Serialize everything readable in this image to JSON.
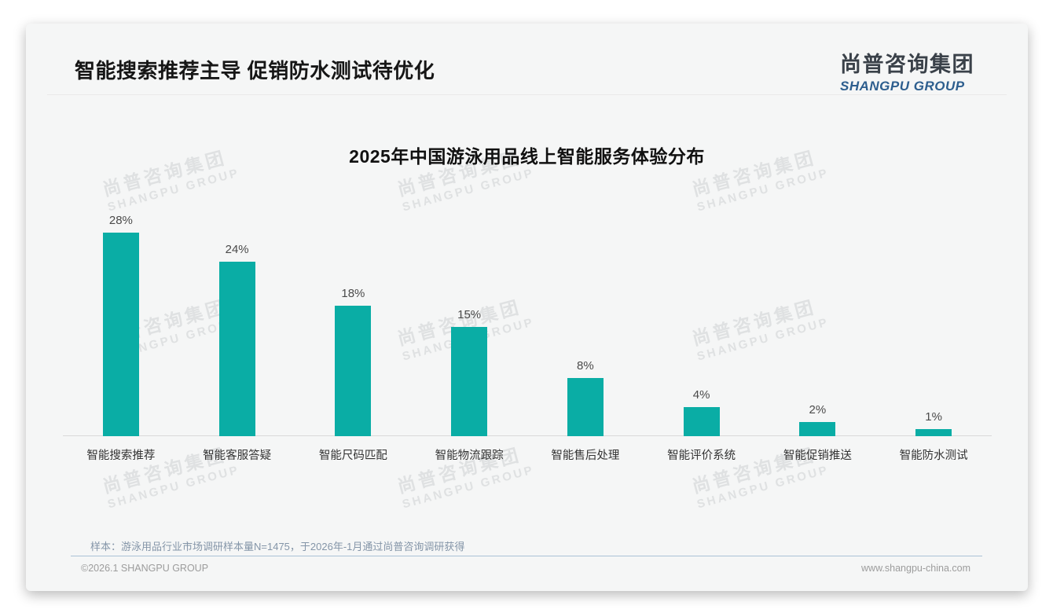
{
  "header": {
    "title": "智能搜索推荐主导 促销防水测试待优化",
    "logo_cn": "尚普咨询集团",
    "logo_en": "SHANGPU GROUP"
  },
  "watermark": {
    "cn": "尚普咨询集团",
    "en": "SHANGPU GROUP"
  },
  "chart_data": {
    "type": "bar",
    "title": "2025年中国游泳用品线上智能服务体验分布",
    "categories": [
      "智能搜索推荐",
      "智能客服答疑",
      "智能尺码匹配",
      "智能物流跟踪",
      "智能售后处理",
      "智能评价系统",
      "智能促销推送",
      "智能防水测试"
    ],
    "values": [
      28,
      24,
      18,
      15,
      8,
      4,
      2,
      1
    ],
    "value_labels": [
      "28%",
      "24%",
      "18%",
      "15%",
      "8%",
      "4%",
      "2%",
      "1%"
    ],
    "unit": "%",
    "bar_color": "#0aada5",
    "xlabel": "",
    "ylabel": "",
    "ylim": [
      0,
      30
    ],
    "grid": false,
    "legend": "none",
    "value_label_position": "above-bar"
  },
  "note": "样本：游泳用品行业市场调研样本量N=1475，于2026年-1月通过尚普咨询调研获得",
  "footer": {
    "left": "©2026.1 SHANGPU GROUP",
    "right": "www.shangpu-china.com"
  }
}
